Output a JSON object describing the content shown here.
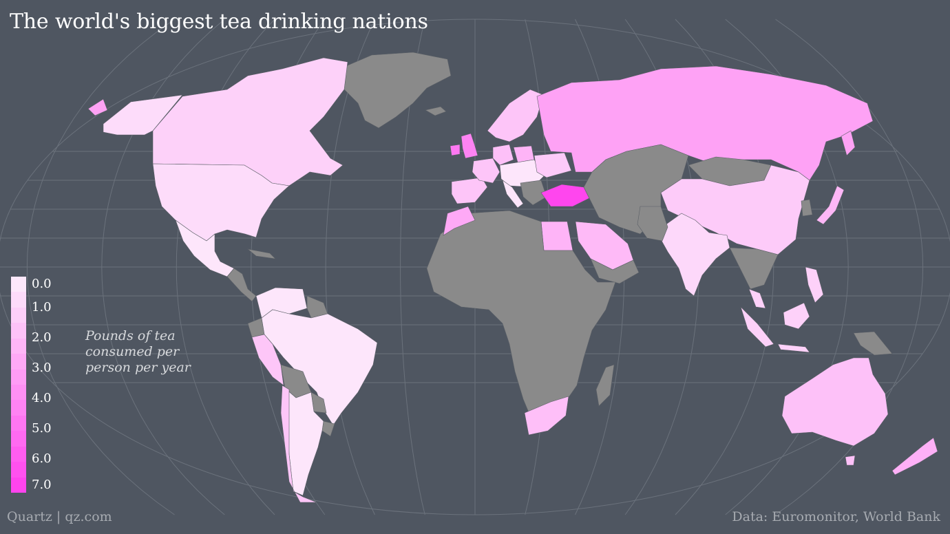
{
  "title": "The world's biggest tea drinking nations",
  "legend": {
    "title_lines": [
      "Pounds of tea",
      "consumed per",
      "person per year"
    ],
    "ticks": [
      "0.0",
      "1.0",
      "2.0",
      "3.0",
      "4.0",
      "5.0",
      "6.0",
      "7.0"
    ],
    "colors": {
      "low": "#fde8fb",
      "high": "#ff44ee",
      "no_data": "#8a8a8a",
      "ocean": "#4f5661",
      "graticule": "#6b727c"
    }
  },
  "source_left": "Quartz | qz.com",
  "source_right": "Data: Euromonitor, World Bank",
  "map_data": {
    "projection": "Robinson-like world projection",
    "value_unit": "pounds per person per year",
    "countries_with_data": [
      {
        "name": "Turkey",
        "value": 6.9
      },
      {
        "name": "Ireland",
        "value": 4.8
      },
      {
        "name": "United Kingdom",
        "value": 4.3
      },
      {
        "name": "Russia",
        "value": 3.0
      },
      {
        "name": "Morocco",
        "value": 2.7
      },
      {
        "name": "New Zealand",
        "value": 2.4
      },
      {
        "name": "Egypt",
        "value": 2.2
      },
      {
        "name": "Poland",
        "value": 2.2
      },
      {
        "name": "Japan",
        "value": 2.1
      },
      {
        "name": "Saudi Arabia",
        "value": 1.98
      },
      {
        "name": "South Africa",
        "value": 1.75
      },
      {
        "name": "Netherlands",
        "value": 1.72
      },
      {
        "name": "Australia",
        "value": 1.66
      },
      {
        "name": "Chile",
        "value": 1.47
      },
      {
        "name": "United Arab Emirates",
        "value": 1.48
      },
      {
        "name": "Germany",
        "value": 1.5
      },
      {
        "name": "Hong Kong",
        "value": 1.4
      },
      {
        "name": "Ukraine",
        "value": 1.3
      },
      {
        "name": "Canada",
        "value": 1.0
      },
      {
        "name": "China",
        "value": 1.25
      },
      {
        "name": "Malaysia",
        "value": 1.0
      },
      {
        "name": "United States",
        "value": 0.5
      },
      {
        "name": "India",
        "value": 0.7
      },
      {
        "name": "Brazil",
        "value": 0.1
      },
      {
        "name": "Mexico",
        "value": 0.1
      }
    ]
  }
}
